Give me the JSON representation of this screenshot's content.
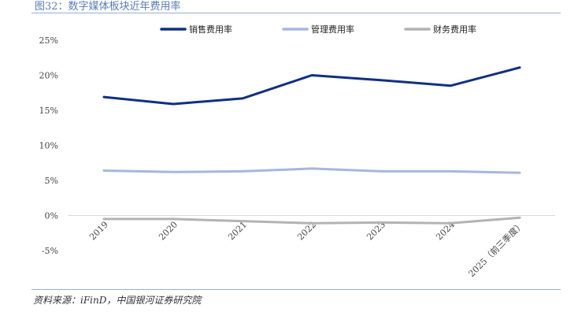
{
  "header": {
    "title": "图32：数字媒体板块近年费用率"
  },
  "source": {
    "text": "资料来源：iFinD，中国银河证券研究院"
  },
  "chart_data": {
    "type": "line",
    "title": "图32：数字媒体板块近年费用率",
    "xlabel": "",
    "ylabel": "",
    "categories": [
      "2019",
      "2020",
      "2021",
      "2022",
      "2023",
      "2024",
      "2025（前三季度）"
    ],
    "ylim": [
      -5,
      25
    ],
    "yticks": [
      -5,
      0,
      5,
      10,
      15,
      20,
      25
    ],
    "ytick_labels": [
      "-5%",
      "0%",
      "5%",
      "10%",
      "15%",
      "20%",
      "25%"
    ],
    "grid": false,
    "legend_position": "top",
    "series": [
      {
        "name": "销售费用率",
        "color": "#0f2f84",
        "values": [
          16.9,
          15.9,
          16.7,
          20.0,
          19.3,
          18.5,
          21.1
        ]
      },
      {
        "name": "管理费用率",
        "color": "#a6b7df",
        "values": [
          6.4,
          6.2,
          6.3,
          6.7,
          6.3,
          6.3,
          6.1
        ]
      },
      {
        "name": "财务费用率",
        "color": "#b3b3b3",
        "values": [
          -0.5,
          -0.5,
          -0.8,
          -1.1,
          -1.0,
          -1.1,
          -0.3
        ]
      }
    ]
  }
}
